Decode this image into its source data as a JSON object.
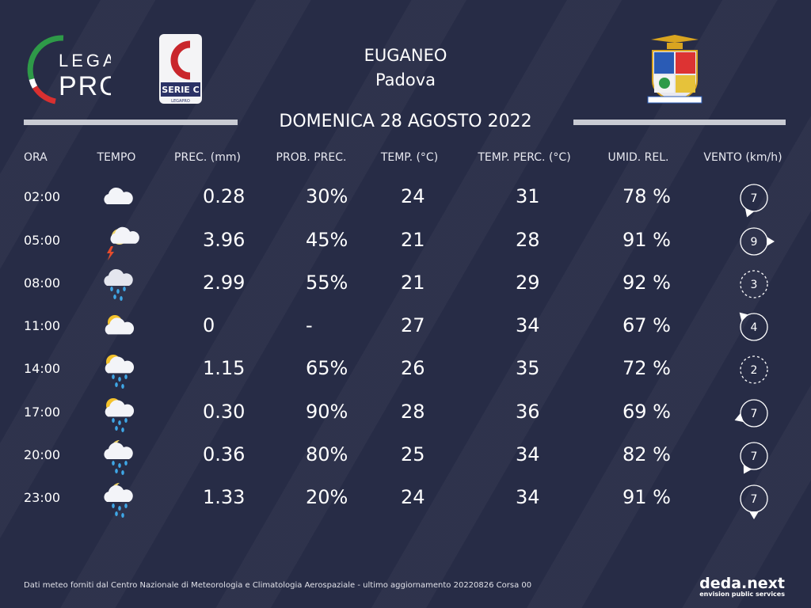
{
  "logos": {
    "league_top": "LEGA",
    "league_bottom": "PRO",
    "serie": "SERIE C",
    "serie_sub": "LEGAPRO"
  },
  "header": {
    "station": "EUGANEO",
    "city": "Padova",
    "date": "DOMENICA 28 AGOSTO 2022"
  },
  "table": {
    "columns": [
      "ORA",
      "TEMPO",
      "PREC. (mm)",
      "PROB. PREC.",
      "TEMP. (°C)",
      "TEMP.  PERC. (°C)",
      "UMID. REL.",
      "VENTO (km/h)"
    ],
    "rows": [
      {
        "time": "02:00",
        "icon": "cloud",
        "prec": "0.28",
        "prob": "30%",
        "temp": "24",
        "perc": "31",
        "humid": "78 %",
        "wind": "7",
        "wind_arrow": 200
      },
      {
        "time": "05:00",
        "icon": "night-storm",
        "prec": "3.96",
        "prob": "45%",
        "temp": "21",
        "perc": "28",
        "humid": "91 %",
        "wind": "9",
        "wind_arrow": 90
      },
      {
        "time": "08:00",
        "icon": "rain",
        "prec": "2.99",
        "prob": "55%",
        "temp": "21",
        "perc": "29",
        "humid": "92 %",
        "wind": "3",
        "wind_arrow": null
      },
      {
        "time": "11:00",
        "icon": "sun-cloud",
        "prec": "0",
        "prob": "-",
        "temp": "27",
        "perc": "34",
        "humid": "67 %",
        "wind": "4",
        "wind_arrow": 315
      },
      {
        "time": "14:00",
        "icon": "sun-rain",
        "prec": "1.15",
        "prob": "65%",
        "temp": "26",
        "perc": "35",
        "humid": "72 %",
        "wind": "2",
        "wind_arrow": null
      },
      {
        "time": "17:00",
        "icon": "sun-rain",
        "prec": "0.30",
        "prob": "90%",
        "temp": "28",
        "perc": "36",
        "humid": "69 %",
        "wind": "7",
        "wind_arrow": 250
      },
      {
        "time": "20:00",
        "icon": "night-rain",
        "prec": "0.36",
        "prob": "80%",
        "temp": "25",
        "perc": "34",
        "humid": "82 %",
        "wind": "7",
        "wind_arrow": 210
      },
      {
        "time": "23:00",
        "icon": "night-rain",
        "prec": "1.33",
        "prob": "20%",
        "temp": "24",
        "perc": "34",
        "humid": "91 %",
        "wind": "7",
        "wind_arrow": 180
      }
    ]
  },
  "footer": {
    "note": "Dati meteo forniti dal Centro Nazionale di Meteorologia e Climatologia Aerospaziale - ultimo aggiornamento 20220826 Corsa 00",
    "brand": "deda.next",
    "tagline": "envision public services"
  }
}
